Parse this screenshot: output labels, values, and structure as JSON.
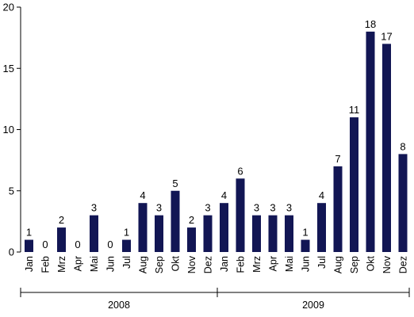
{
  "chart_data": {
    "type": "bar",
    "title": "",
    "xlabel": "",
    "ylabel": "",
    "ylim": [
      0,
      20
    ],
    "yticks": [
      "0",
      "5",
      "10",
      "15",
      "20"
    ],
    "grid": false,
    "bar_color": "#121654",
    "groups": [
      {
        "label": "2008",
        "categories": [
          "Jan",
          "Feb",
          "Mrz",
          "Apr",
          "Mai",
          "Jun",
          "Jul",
          "Aug",
          "Sep",
          "Okt",
          "Nov",
          "Dez"
        ]
      },
      {
        "label": "2009",
        "categories": [
          "Jan",
          "Feb",
          "Mrz",
          "Apr",
          "Mai",
          "Jun",
          "Jul",
          "Aug",
          "Sep",
          "Okt",
          "Nov",
          "Dez"
        ]
      }
    ],
    "categories": [
      "Jan",
      "Feb",
      "Mrz",
      "Apr",
      "Mai",
      "Jun",
      "Jul",
      "Aug",
      "Sep",
      "Okt",
      "Nov",
      "Dez",
      "Jan",
      "Feb",
      "Mrz",
      "Apr",
      "Mai",
      "Jun",
      "Jul",
      "Aug",
      "Sep",
      "Okt",
      "Nov",
      "Dez"
    ],
    "values": [
      1,
      0,
      2,
      0,
      3,
      0,
      1,
      4,
      3,
      5,
      2,
      3,
      4,
      6,
      3,
      3,
      3,
      1,
      4,
      7,
      11,
      18,
      17,
      8
    ]
  }
}
